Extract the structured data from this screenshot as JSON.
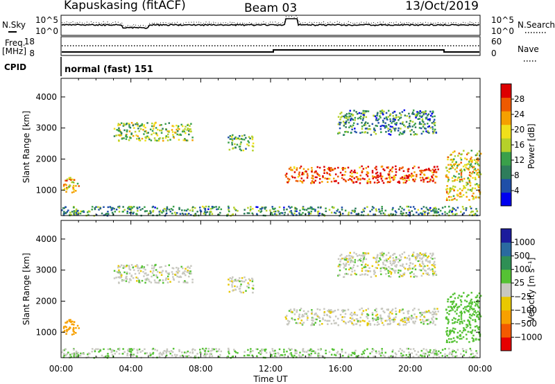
{
  "header": {
    "station": "Kapuskasing (fitACF)",
    "beam": "Beam 03",
    "date": "13/Oct/2019"
  },
  "ancillary": {
    "nsky_label": "N.Sky",
    "nsearch_label": "N.Search",
    "noise_ticks": [
      "10^5",
      "10^0"
    ],
    "freq_label_line1": "Freq.",
    "freq_label_line2": "[MHz]",
    "freq_ticks": [
      "18",
      "8"
    ],
    "nave_label": "Nave",
    "nave_ticks": [
      "60",
      "0"
    ],
    "cpid_label": "CPID",
    "cpid_value": "normal (fast) 151"
  },
  "colors": {
    "power_scale": [
      "#0000ee",
      "#1f4fa8",
      "#2e7d5b",
      "#3aa04a",
      "#b5d12a",
      "#f0e01a",
      "#f5a000",
      "#ee5a00",
      "#dd0000"
    ],
    "velocity_scale": [
      "#e60000",
      "#f35a00",
      "#f7a000",
      "#e8c800",
      "#c8c8c0",
      "#55c234",
      "#2f8f55",
      "#2a6aa0",
      "#1c1c9c"
    ],
    "ground_scatter": "#c8c8c0"
  },
  "chart_data": [
    {
      "type": "heatmap",
      "panel": "power",
      "ylabel": "Slant Range [km]",
      "xlim": [
        0,
        24
      ],
      "ylim": [
        180,
        4600
      ],
      "yticks": [
        1000,
        2000,
        3000,
        4000
      ],
      "colorbar": {
        "label": "Power [dB]",
        "ticks": [
          "4",
          "8",
          "12",
          "16",
          "20",
          "24",
          "28"
        ],
        "range": [
          0,
          30
        ]
      },
      "echo_regions": [
        {
          "t0": 0.0,
          "t1": 1.0,
          "r0": 900,
          "r1": 1450,
          "value": 20
        },
        {
          "t0": 12.8,
          "t1": 21.6,
          "r0": 1250,
          "r1": 1800,
          "value": 26
        },
        {
          "t0": 15.8,
          "t1": 21.5,
          "r0": 2800,
          "r1": 3600,
          "value": 9
        },
        {
          "t0": 9.5,
          "t1": 11.0,
          "r0": 2300,
          "r1": 2800,
          "value": 13
        },
        {
          "t0": 3.0,
          "t1": 7.5,
          "r0": 2600,
          "r1": 3200,
          "value": 15
        },
        {
          "t0": 22.0,
          "t1": 24.0,
          "r0": 700,
          "r1": 2300,
          "value": 18
        },
        {
          "t0": 0.0,
          "t1": 24.0,
          "r0": 200,
          "r1": 500,
          "value": 10
        }
      ]
    },
    {
      "type": "heatmap",
      "panel": "velocity",
      "ylabel": "Slant Range [km]",
      "xlabel": "Time UT",
      "xlim": [
        0,
        24
      ],
      "ylim": [
        180,
        4600
      ],
      "xticks": [
        "00:00",
        "04:00",
        "08:00",
        "12:00",
        "16:00",
        "20:00",
        "00:00"
      ],
      "yticks": [
        1000,
        2000,
        3000,
        4000
      ],
      "colorbar": {
        "label": "Velocity [m s⁻¹]",
        "ticks": [
          "1000",
          "500",
          "100",
          "25",
          "−25",
          "−100",
          "−500",
          "−1000"
        ]
      },
      "echo_regions": [
        {
          "t0": 0.0,
          "t1": 1.0,
          "r0": 900,
          "r1": 1450,
          "value": -300
        },
        {
          "t0": 12.8,
          "t1": 21.6,
          "r0": 1250,
          "r1": 1800,
          "value": 0
        },
        {
          "t0": 15.8,
          "t1": 21.5,
          "r0": 2800,
          "r1": 3600,
          "value": 0
        },
        {
          "t0": 9.5,
          "t1": 11.0,
          "r0": 2300,
          "r1": 2800,
          "value": 0
        },
        {
          "t0": 3.0,
          "t1": 7.5,
          "r0": 2600,
          "r1": 3200,
          "value": 0
        },
        {
          "t0": 22.0,
          "t1": 24.0,
          "r0": 700,
          "r1": 2300,
          "value": 60
        },
        {
          "t0": 0.0,
          "t1": 24.0,
          "r0": 200,
          "r1": 500,
          "value": 20
        }
      ]
    }
  ]
}
